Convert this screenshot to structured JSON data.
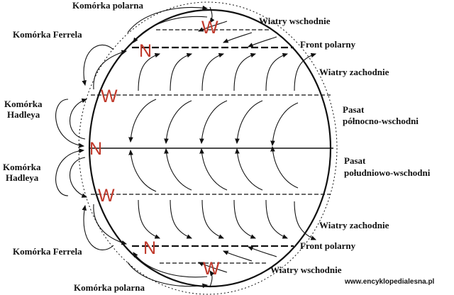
{
  "colors": {
    "pressure_letter": "#c0392b",
    "ink": "#111111"
  },
  "cells": {
    "polar_top": "Komórka polarna",
    "ferrel_top": "Komórka Ferrela",
    "hadley_top_line1": "Komórka",
    "hadley_top_line2": "Hadleya",
    "hadley_bottom_line1": "Komórka",
    "hadley_bottom_line2": "Hadleya",
    "ferrel_bottom": "Komórka Ferrela",
    "polar_bottom": "Komórka polarna"
  },
  "winds": {
    "easterlies_north": "Wiatry wschodnie",
    "polar_front_north": "Front polarny",
    "westerlies_north": "Wiatry zachodnie",
    "trade_ne_line1": "Pasat",
    "trade_ne_line2": "północno-wschodni",
    "trade_se_line1": "Pasat",
    "trade_se_line2": "południowo-wschodni",
    "westerlies_south": "Wiatry zachodnie",
    "polar_front_south": "Front polarny",
    "easterlies_south": "Wiatry wschodnie"
  },
  "pressure": {
    "high_north_pole": "W",
    "low_north_60": "N",
    "high_north_30": "W",
    "low_equator": "N",
    "high_south_30": "W",
    "low_south_60": "N",
    "high_south_pole": "W"
  },
  "credit": "www.encyklopedialesna.pl"
}
